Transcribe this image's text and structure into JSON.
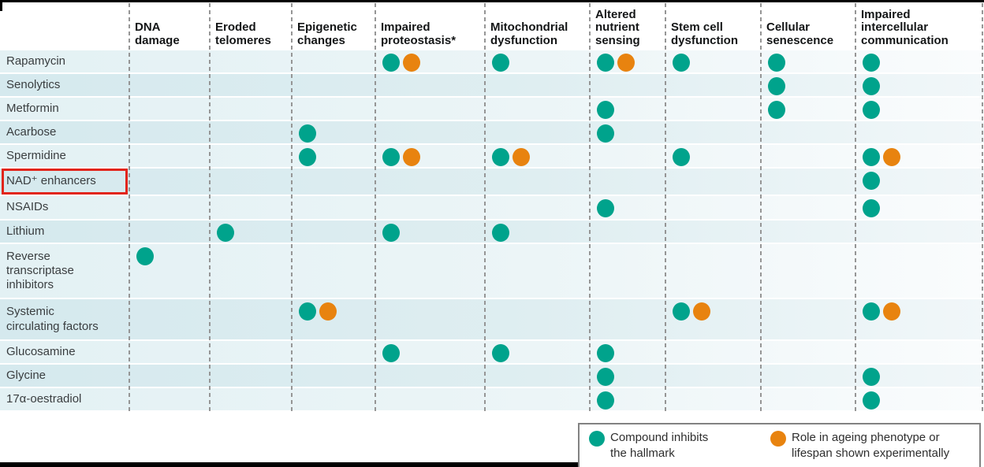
{
  "chart_data": {
    "type": "table",
    "columns": [
      "DNA\ndamage",
      "Eroded\ntelomeres",
      "Epigenetic\nchanges",
      "Impaired\nproteostasis*",
      "Mitochondrial\ndysfunction",
      "Altered\nnutrient\nsensing",
      "Stem cell\ndysfunction",
      "Cellular\nsenescence",
      "Impaired\nintercellular\ncommunication"
    ],
    "rows": [
      {
        "label": "Rapamycin",
        "highlighted": false,
        "cells": [
          "",
          "",
          "",
          "TO",
          "T",
          "TO",
          "T",
          "T",
          "T"
        ]
      },
      {
        "label": "Senolytics",
        "highlighted": false,
        "cells": [
          "",
          "",
          "",
          "",
          "",
          "",
          "",
          "T",
          "T"
        ]
      },
      {
        "label": "Metformin",
        "highlighted": false,
        "cells": [
          "",
          "",
          "",
          "",
          "",
          "T",
          "",
          "T",
          "T"
        ]
      },
      {
        "label": "Acarbose",
        "highlighted": false,
        "cells": [
          "",
          "",
          "T",
          "",
          "",
          "T",
          "",
          "",
          ""
        ]
      },
      {
        "label": "Spermidine",
        "highlighted": false,
        "cells": [
          "",
          "",
          "T",
          "TO",
          "TO",
          "",
          "T",
          "",
          "TO"
        ]
      },
      {
        "label": "NAD⁺ enhancers",
        "highlighted": true,
        "cells": [
          "",
          "",
          "",
          "",
          "",
          "",
          "",
          "",
          "T"
        ]
      },
      {
        "label": "NSAIDs",
        "highlighted": false,
        "cells": [
          "",
          "",
          "",
          "",
          "",
          "T",
          "",
          "",
          "T"
        ]
      },
      {
        "label": "Lithium",
        "highlighted": false,
        "cells": [
          "",
          "T",
          "",
          "T",
          "T",
          "",
          "",
          "",
          ""
        ]
      },
      {
        "label": "Reverse\ntranscriptase\ninhibitors",
        "highlighted": false,
        "cells": [
          "T",
          "",
          "",
          "",
          "",
          "",
          "",
          "",
          ""
        ]
      },
      {
        "label": "Systemic\ncirculating factors",
        "highlighted": false,
        "cells": [
          "",
          "",
          "TO",
          "",
          "",
          "",
          "TO",
          "",
          "TO"
        ]
      },
      {
        "label": "Glucosamine",
        "highlighted": false,
        "cells": [
          "",
          "",
          "",
          "T",
          "T",
          "T",
          "",
          "",
          ""
        ]
      },
      {
        "label": "Glycine",
        "highlighted": false,
        "cells": [
          "",
          "",
          "",
          "",
          "",
          "T",
          "",
          "",
          "T"
        ]
      },
      {
        "label": "17α-oestradiol",
        "highlighted": false,
        "cells": [
          "",
          "",
          "",
          "",
          "",
          "T",
          "",
          "",
          "T"
        ]
      }
    ],
    "cell_codes": {
      "T": "teal dot",
      "TO": "teal dot and orange dot"
    },
    "legend": [
      {
        "marker": "teal-dot",
        "label": "Compound inhibits\nthe hallmark"
      },
      {
        "marker": "orange-dot",
        "label": "Role in ageing phenotype or\nlifespan shown experimentally"
      }
    ],
    "colors": {
      "teal": "#00A38C",
      "orange": "#E8830F",
      "highlight_box_red": "#E1251B"
    },
    "highlighted_row": "NAD⁺ enhancers"
  }
}
